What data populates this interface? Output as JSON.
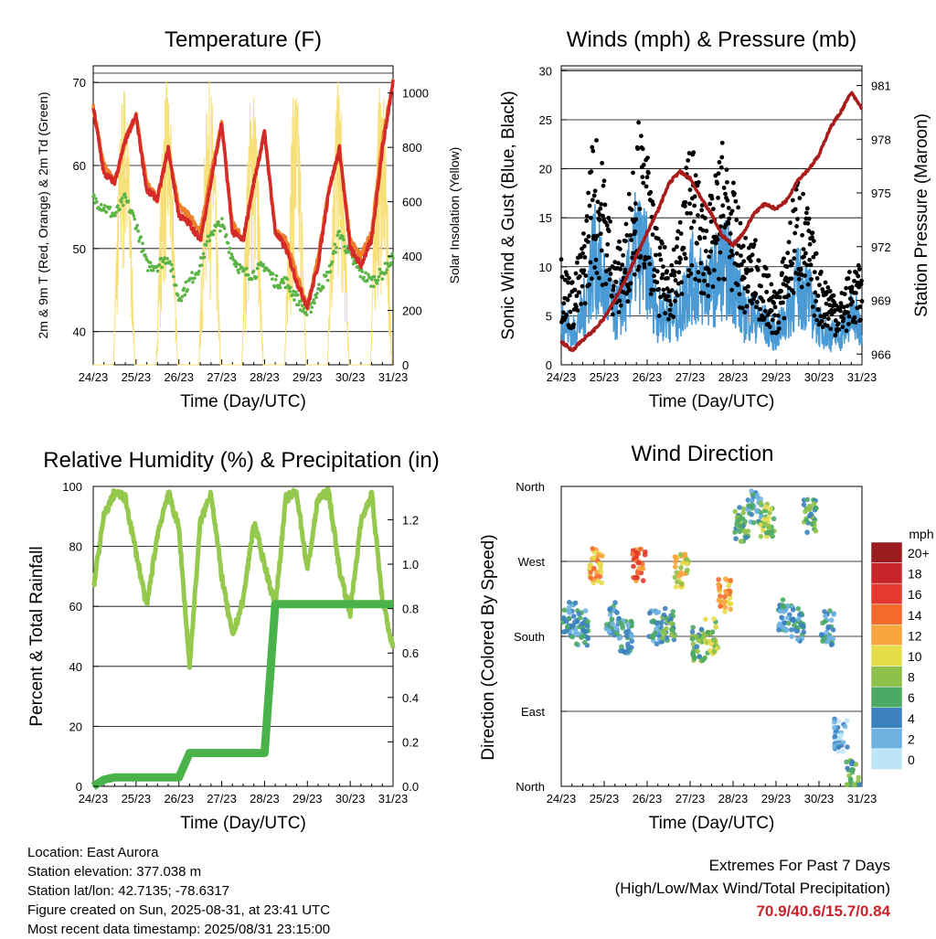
{
  "x_ticks": [
    "24/23",
    "25/23",
    "26/23",
    "27/23",
    "28/23",
    "29/23",
    "30/23",
    "31/23"
  ],
  "x_label": "Time (Day/UTC)",
  "panels": {
    "temperature": {
      "title": "Temperature (F)",
      "ylabel_left": "2m & 9m T (Red, Orange) & 2m Td (Green)",
      "ylabel_right": "Solar Insolation (Yellow)",
      "left_ticks": [
        "40",
        "50",
        "60",
        "70"
      ],
      "right_ticks": [
        "0",
        "200",
        "400",
        "600",
        "800",
        "1000"
      ]
    },
    "winds": {
      "title": "Winds (mph) & Pressure (mb)",
      "ylabel_left": "Sonic Wind & Gust (Blue, Black)",
      "ylabel_right": "Station Pressure (Maroon)",
      "left_ticks": [
        "0",
        "5",
        "10",
        "15",
        "20",
        "25",
        "30"
      ],
      "right_ticks": [
        "966",
        "969",
        "972",
        "975",
        "978",
        "981"
      ]
    },
    "humidity": {
      "title": "Relative Humidity (%) & Precipitation (in)",
      "ylabel_left": "Percent & Total Rainfall",
      "left_ticks": [
        "0",
        "20",
        "40",
        "60",
        "80",
        "100"
      ],
      "right_ticks": [
        "0.0",
        "0.2",
        "0.4",
        "0.6",
        "0.8",
        "1.0",
        "1.2"
      ]
    },
    "direction": {
      "title": "Wind Direction",
      "ylabel_left": "Direction (Colored By Speed)",
      "left_ticks": [
        "North",
        "East",
        "South",
        "West",
        "North"
      ],
      "legend_title": "mph",
      "legend_labels": [
        "20+",
        "18",
        "16",
        "14",
        "12",
        "10",
        "8",
        "6",
        "4",
        "2",
        "0"
      ],
      "legend_colors": [
        "#9b1c1f",
        "#c8242b",
        "#e3392e",
        "#f26b2d",
        "#f7a53d",
        "#e6dc4a",
        "#8fc14a",
        "#4daa64",
        "#3b82bf",
        "#6fb3e2",
        "#bde4f7"
      ]
    }
  },
  "info": {
    "location": "Location: East Aurora",
    "elevation": "Station elevation: 377.038 m",
    "latlon": "Station lat/lon: 42.7135; -78.6317",
    "created": "Figure created on Sun, 2025-08-31, at 23:41 UTC",
    "timestamp": "Most recent data timestamp: 2025/08/31 23:15:00"
  },
  "extremes": {
    "title": "Extremes For Past 7 Days",
    "subtitle": "(High/Low/Max Wind/Total Precipitation)",
    "values": "70.9/40.6/15.7/0.84"
  },
  "colors": {
    "temp2m": "#d42a2a",
    "temp9m": "#f07f2a",
    "dewpoint": "#5cb346",
    "solar": "#f7e07a",
    "gust": "#000000",
    "wind": "#4a9ad6",
    "pressure": "#a81c1c",
    "rh": "#95c94e",
    "precip": "#49b349"
  },
  "chart_data": [
    {
      "type": "line",
      "x": [
        0,
        0.25,
        0.5,
        0.75,
        1,
        1.25,
        1.5,
        1.75,
        2,
        2.25,
        2.5,
        2.75,
        3,
        3.25,
        3.5,
        3.75,
        4,
        4.25,
        4.5,
        4.75,
        5,
        5.25,
        5.5,
        5.75,
        6,
        6.25,
        6.5,
        6.75,
        7
      ],
      "series": [
        {
          "values": [
            67,
            59,
            58,
            63,
            66,
            57,
            56,
            62,
            54,
            53,
            51,
            58,
            65,
            52,
            51,
            58,
            64,
            52,
            50,
            46,
            43,
            48,
            57,
            62,
            50,
            48,
            51,
            62,
            70
          ]
        },
        {
          "values": [
            67,
            60,
            58,
            63,
            66,
            58,
            56,
            62,
            55,
            54,
            52,
            59,
            65,
            53,
            51,
            58,
            64,
            52,
            51,
            47,
            43,
            49,
            57,
            62,
            51,
            49,
            52,
            63,
            70
          ]
        },
        {
          "values": [
            56,
            55,
            54,
            56,
            53,
            48,
            48,
            49,
            44,
            46,
            48,
            52,
            53,
            49,
            47,
            47,
            48,
            46,
            46,
            44,
            42,
            45,
            47,
            52,
            49,
            47,
            46,
            47,
            49
          ]
        }
      ],
      "solar": {
        "peaks_days": [
          0.7,
          1.7,
          2.7,
          3.7,
          4.7,
          5.7,
          6.7
        ],
        "peaks": [
          1000,
          1000,
          1000,
          900,
          1000,
          1000,
          1000
        ]
      },
      "ylim": [
        36,
        72
      ],
      "y2lim": [
        0,
        1100
      ]
    },
    {
      "type": "line",
      "x": [
        0,
        0.25,
        0.5,
        0.75,
        1,
        1.25,
        1.5,
        1.75,
        2,
        2.25,
        2.5,
        2.75,
        3,
        3.25,
        3.5,
        3.75,
        4,
        4.25,
        4.5,
        4.75,
        5,
        5.25,
        5.5,
        5.75,
        6,
        6.25,
        6.5,
        6.75,
        7
      ],
      "series": [
        {
          "values": [
            8,
            6,
            9,
            17,
            14,
            8,
            10,
            18,
            15,
            9,
            8,
            10,
            17,
            12,
            12,
            16,
            13,
            9,
            9,
            7,
            5,
            9,
            14,
            11,
            7,
            6,
            5,
            7,
            7
          ]
        },
        {
          "values": [
            5,
            3,
            5,
            11,
            8,
            5,
            7,
            12,
            10,
            5,
            5,
            5,
            9,
            8,
            8,
            10,
            9,
            5,
            5,
            4,
            3,
            5,
            8,
            7,
            4,
            3,
            3,
            5,
            4
          ]
        },
        {
          "values": [
            966.7,
            966.2,
            966.8,
            967.3,
            968.0,
            969.0,
            970.2,
            971.5,
            972.8,
            974.0,
            975.5,
            976.2,
            975.8,
            974.7,
            973.8,
            972.6,
            972.1,
            972.8,
            973.9,
            974.4,
            974.1,
            974.6,
            975.7,
            976.3,
            977.1,
            978.6,
            979.5,
            980.6,
            979.7
          ]
        }
      ],
      "ylim": [
        0,
        30.5
      ],
      "y2lim": [
        965.4,
        982.1
      ]
    },
    {
      "type": "line",
      "x": [
        0,
        0.25,
        0.5,
        0.75,
        1,
        1.25,
        1.5,
        1.75,
        2,
        2.25,
        2.5,
        2.75,
        3,
        3.25,
        3.5,
        3.75,
        4,
        4.25,
        4.5,
        4.75,
        5,
        5.25,
        5.5,
        5.75,
        6,
        6.25,
        6.5,
        6.75,
        7
      ],
      "series": [
        {
          "values": [
            66,
            90,
            98,
            96,
            78,
            60,
            84,
            98,
            86,
            40,
            88,
            98,
            70,
            50,
            62,
            88,
            74,
            60,
            96,
            98,
            72,
            96,
            98,
            72,
            58,
            88,
            98,
            62,
            46
          ]
        },
        {
          "values": [
            0,
            0.03,
            0.04,
            0.04,
            0.04,
            0.04,
            0.04,
            0.04,
            0.04,
            0.15,
            0.15,
            0.15,
            0.15,
            0.15,
            0.15,
            0.15,
            0.15,
            0.82,
            0.82,
            0.82,
            0.82,
            0.82,
            0.82,
            0.82,
            0.82,
            0.82,
            0.82,
            0.82,
            0.82
          ]
        }
      ],
      "ylim": [
        0,
        100
      ],
      "y2lim": [
        0,
        1.35
      ]
    },
    {
      "type": "scatter",
      "x": [
        0.2,
        0.5,
        0.8,
        1.2,
        1.5,
        1.8,
        2.2,
        2.5,
        2.8,
        3.2,
        3.5,
        3.8,
        4.2,
        4.5,
        4.8,
        5.2,
        5.5,
        5.8,
        6.2,
        6.5,
        6.8
      ],
      "values": [
        200,
        190,
        265,
        200,
        180,
        265,
        190,
        195,
        260,
        170,
        180,
        230,
        315,
        335,
        320,
        205,
        195,
        325,
        190,
        60,
        10
      ],
      "speeds": [
        4,
        4,
        12,
        4,
        4,
        14,
        4,
        6,
        10,
        6,
        8,
        12,
        6,
        4,
        8,
        4,
        4,
        6,
        4,
        2,
        6
      ],
      "yticks_deg": [
        0,
        90,
        180,
        270,
        360
      ],
      "ylim": [
        0,
        360
      ]
    }
  ]
}
